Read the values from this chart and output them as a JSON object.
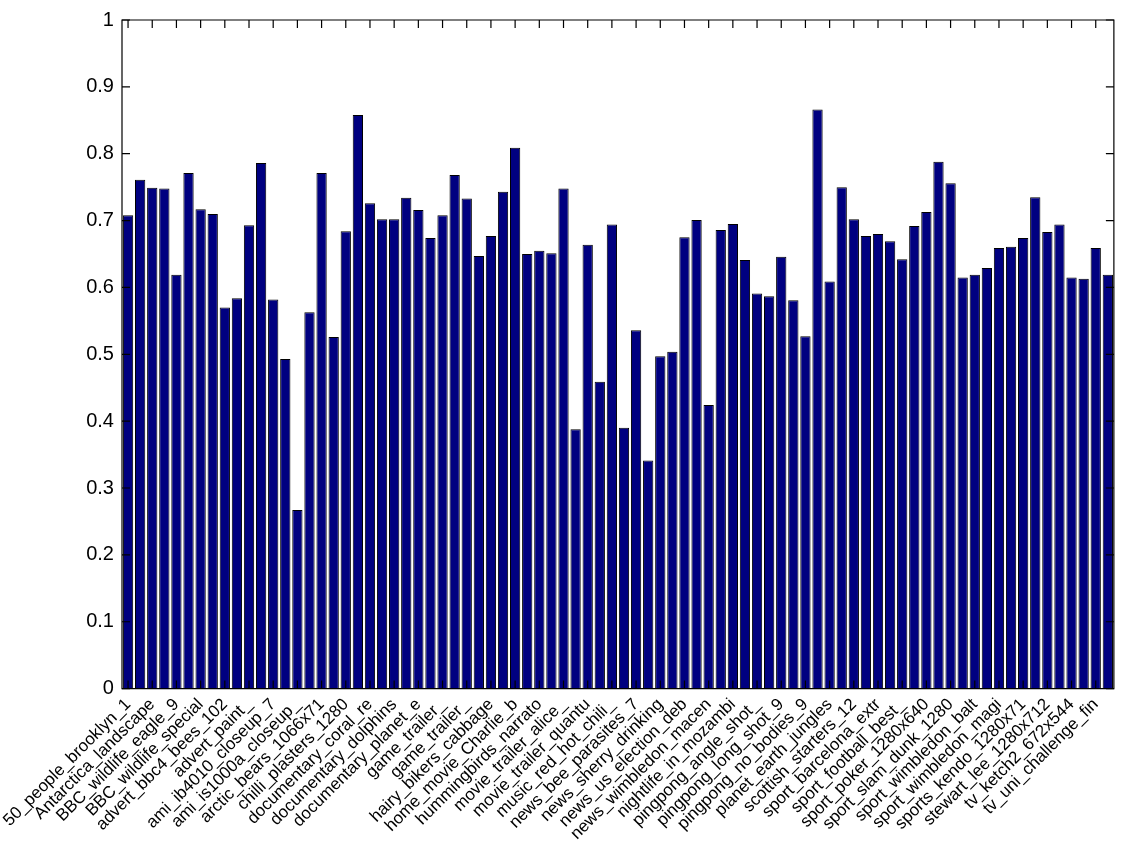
{
  "chart_data": {
    "type": "bar",
    "categories": [
      "50_people_brooklyn_1",
      null,
      "Antarctica_landscape",
      null,
      "BBC_wildlife_eagle_9",
      null,
      "BBC_wildlife_special",
      null,
      "advert_bbc4_bees_102",
      null,
      "advert_paint_",
      null,
      "ami_ib4010_closeup_7",
      null,
      "ami_is1000a_closeup_",
      null,
      "arctic_bears_1066x71",
      null,
      "chilli_plasters_1280",
      null,
      "documentary_coral_re",
      null,
      "documentary_dolphins",
      null,
      "documentary_planet_e",
      null,
      "game_trailer_",
      null,
      "game_trailer_",
      null,
      "hairy_bikers_cabbage",
      null,
      "home_movie_Charlie_b",
      null,
      "hummingbirds_narrato",
      null,
      "movie_trailer_alice_",
      null,
      "movie_trailer_quantu",
      null,
      "music_red_hot_chili_",
      null,
      "news_bee_parasites_7",
      null,
      "news_sherry_drinking",
      null,
      "news_us_election_deb",
      null,
      "news_wimbledon_macen",
      null,
      "nightlife_in_mozambi",
      null,
      "pingpong_angle_shot_",
      null,
      "pingpong_long_shot_9",
      null,
      "pingpong_no_bodies_9",
      null,
      "planet_earth_jungles",
      null,
      "scottish_starters_12",
      null,
      "sport_barcelona_extr",
      null,
      "sport_football_best_",
      null,
      "sport_poker_1280x640",
      null,
      "sport_slam_dunk_1280",
      null,
      "sport_wimbledon_balt",
      null,
      "sport_wimbledon_magi",
      null,
      "sports_kendo_1280x71",
      null,
      "stewart_lee_1280x712",
      null,
      "tv_ketch2_672x544",
      null,
      "tv_uni_challenge_fin",
      null
    ],
    "values": [
      0.708,
      0.761,
      0.749,
      0.748,
      0.619,
      0.771,
      0.717,
      0.71,
      0.57,
      0.584,
      0.693,
      0.786,
      0.582,
      0.493,
      0.267,
      0.563,
      0.771,
      0.526,
      0.684,
      0.858,
      0.726,
      0.702,
      0.702,
      0.734,
      0.716,
      0.674,
      0.708,
      0.768,
      0.733,
      0.647,
      0.677,
      0.743,
      0.809,
      0.65,
      0.655,
      0.651,
      0.748,
      0.388,
      0.664,
      0.459,
      0.694,
      0.39,
      0.536,
      0.341,
      0.497,
      0.504,
      0.675,
      0.701,
      0.424,
      0.686,
      0.695,
      0.641,
      0.591,
      0.587,
      0.646,
      0.581,
      0.527,
      0.866,
      0.609,
      0.75,
      0.702,
      0.677,
      0.68,
      0.669,
      0.642,
      0.692,
      0.713,
      0.788,
      0.756,
      0.615,
      0.619,
      0.629,
      0.659,
      0.661,
      0.674,
      0.735,
      0.683,
      0.694,
      0.615,
      0.613,
      0.659,
      0.619
    ],
    "color": "#000080",
    "ylim": [
      0,
      1
    ],
    "yticks": [
      0,
      0.1,
      0.2,
      0.3,
      0.4,
      0.5,
      0.6,
      0.7,
      0.8,
      0.9,
      1
    ],
    "grid": false,
    "legend": false
  }
}
